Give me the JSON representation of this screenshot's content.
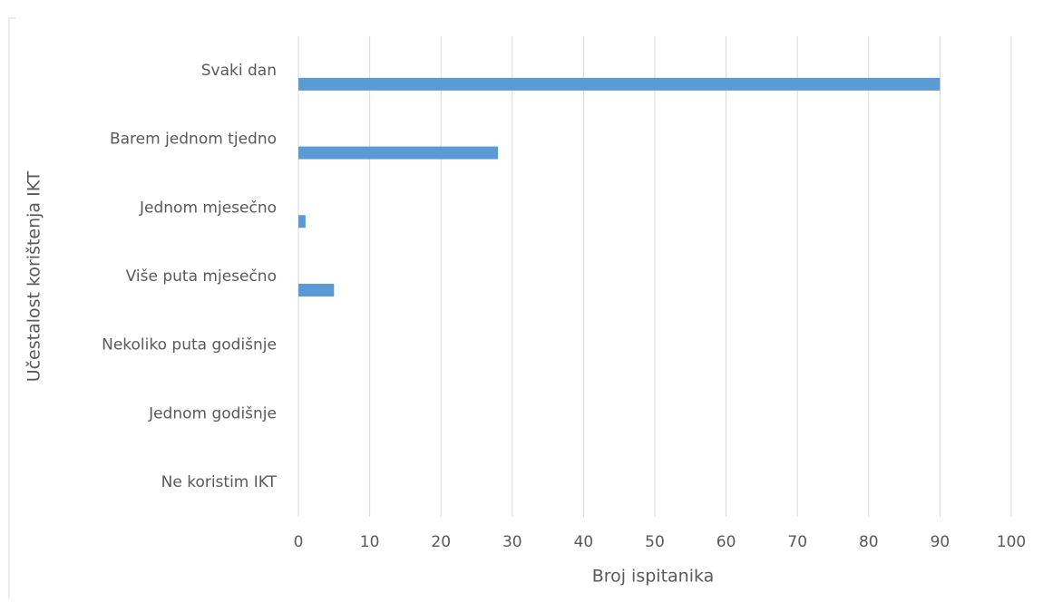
{
  "chart_data": {
    "type": "bar",
    "orientation": "horizontal",
    "x_label": "Broj ispitanika",
    "y_label": "Učestalost korištenja IKT",
    "categories": [
      "Svaki dan",
      "Barem jednom tjedno",
      "Jednom mjesečno",
      "Više puta mjesečno",
      "Nekoliko puta godišnje",
      "Jednom godišnje",
      "Ne koristim IKT"
    ],
    "values": [
      90,
      28,
      1,
      5,
      0,
      0,
      0
    ],
    "color": "#5b9bd5",
    "xlim": [
      0,
      100
    ],
    "xticks": [
      0,
      10,
      20,
      30,
      40,
      50,
      60,
      70,
      80,
      90,
      100
    ],
    "grid": true
  }
}
